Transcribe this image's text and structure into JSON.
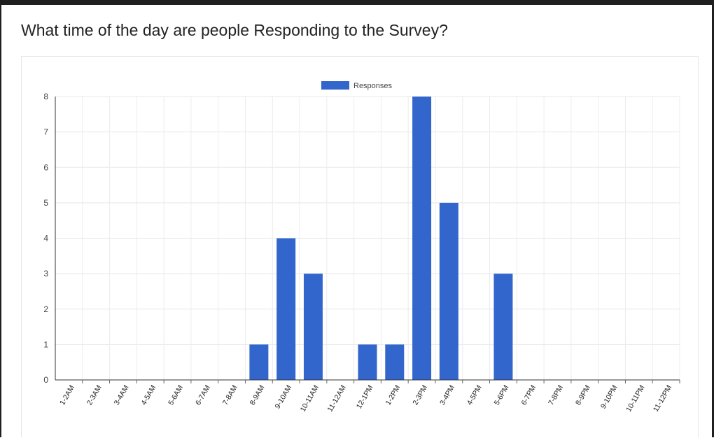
{
  "page": {
    "title": "What time of the day are people Responding to the Survey?"
  },
  "chart_data": {
    "type": "bar",
    "title": "",
    "xlabel": "",
    "ylabel": "",
    "ylim": [
      0,
      8
    ],
    "yticks": [
      0,
      1,
      2,
      3,
      4,
      5,
      6,
      7,
      8
    ],
    "grid": true,
    "legend_position": "top",
    "categories": [
      "1-2AM",
      "2-3AM",
      "3-4AM",
      "4-5AM",
      "5-6AM",
      "6-7AM",
      "7-8AM",
      "8-9AM",
      "9-10AM",
      "10-11AM",
      "11-12AM",
      "12-1PM",
      "1-2PM",
      "2-3PM",
      "3-4PM",
      "4-5PM",
      "5-6PM",
      "6-7PM",
      "7-8PM",
      "8-9PM",
      "9-10PM",
      "10-11PM",
      "11-12PM"
    ],
    "series": [
      {
        "name": "Responses",
        "color": "#3366cc",
        "values": [
          0,
          0,
          0,
          0,
          0,
          0,
          0,
          1,
          4,
          3,
          0,
          1,
          1,
          8,
          5,
          0,
          3,
          0,
          0,
          0,
          0,
          0,
          0
        ]
      }
    ]
  }
}
